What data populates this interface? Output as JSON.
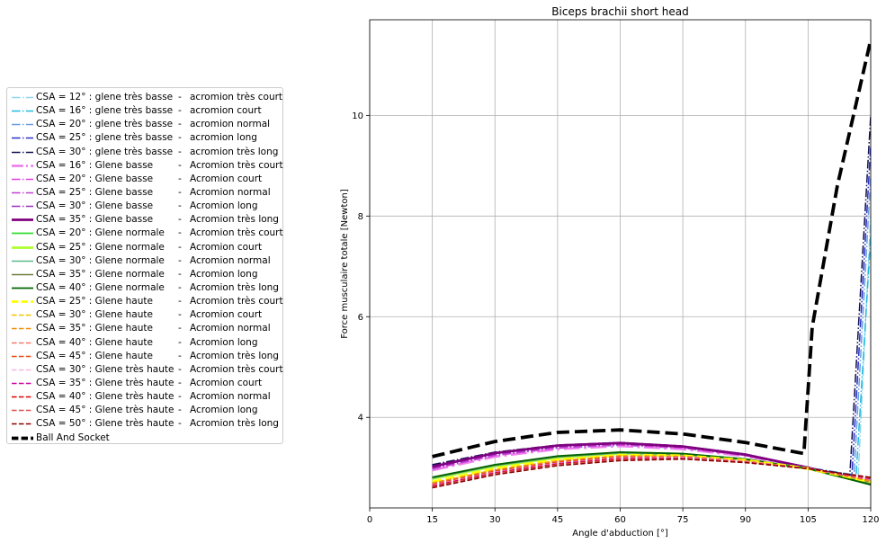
{
  "chart_data": {
    "type": "line",
    "title": "Biceps brachii short head",
    "xlabel": "Angle d'abduction [°]",
    "ylabel": "Force musculaire totale [Newton]",
    "xlim": [
      0,
      120
    ],
    "ylim": [
      2.2,
      11.9
    ],
    "xticks": [
      0,
      15,
      30,
      45,
      60,
      75,
      90,
      105,
      120
    ],
    "yticks": [
      4,
      6,
      8,
      10
    ],
    "grid": true,
    "legend_position": "left, outside plot",
    "series": [
      {
        "csa": "CSA = 12° : glene très basse",
        "acromion": "acromion très court",
        "color": "#8fd6e8",
        "dash": "dashdot",
        "width": 1.5,
        "x": [
          15,
          30,
          45,
          60,
          75,
          90,
          105,
          117,
          120
        ],
        "y": [
          3.0,
          3.25,
          3.38,
          3.44,
          3.38,
          3.25,
          3.0,
          2.85,
          8.0
        ]
      },
      {
        "csa": "CSA = 16° : glene très basse",
        "acromion": "acromion court",
        "color": "#22bbe0",
        "dash": "dashdot",
        "width": 1.5,
        "x": [
          15,
          30,
          45,
          60,
          75,
          90,
          105,
          116.5,
          120
        ],
        "y": [
          3.02,
          3.27,
          3.4,
          3.46,
          3.4,
          3.26,
          3.0,
          2.85,
          7.6
        ]
      },
      {
        "csa": "CSA = 20° : glene très basse",
        "acromion": "acromion normal",
        "color": "#6a9fe0",
        "dash": "dashdot",
        "width": 1.5,
        "x": [
          15,
          30,
          45,
          60,
          75,
          90,
          105,
          116,
          120
        ],
        "y": [
          3.03,
          3.28,
          3.41,
          3.47,
          3.41,
          3.26,
          3.0,
          2.85,
          8.8
        ]
      },
      {
        "csa": "CSA = 25° : glene très basse",
        "acromion": "acromion long",
        "color": "#2a30c8",
        "dash": "dashdot",
        "width": 1.5,
        "x": [
          15,
          30,
          45,
          60,
          75,
          90,
          105,
          115.5,
          120
        ],
        "y": [
          3.05,
          3.3,
          3.43,
          3.49,
          3.42,
          3.27,
          3.0,
          2.85,
          9.4
        ]
      },
      {
        "csa": "CSA = 30° : glene très basse",
        "acromion": "acromion très long",
        "color": "#101050",
        "dash": "dashdot",
        "width": 1.5,
        "x": [
          15,
          30,
          45,
          60,
          75,
          90,
          105,
          115,
          120
        ],
        "y": [
          3.06,
          3.31,
          3.45,
          3.5,
          3.43,
          3.27,
          3.0,
          2.85,
          10.0
        ]
      },
      {
        "csa": "CSA = 16° : Glene basse",
        "acromion": "Acromion très court",
        "color": "#ee82ee",
        "dash": "dashdot",
        "width": 2.8,
        "x": [
          15,
          30,
          45,
          60,
          75,
          90,
          105,
          120
        ],
        "y": [
          2.95,
          3.22,
          3.37,
          3.43,
          3.37,
          3.23,
          3.0,
          2.7
        ]
      },
      {
        "csa": "CSA = 20° : Glene basse",
        "acromion": "Acromion court",
        "color": "#e040e0",
        "dash": "dashdot",
        "width": 1.5,
        "x": [
          15,
          30,
          45,
          60,
          75,
          90,
          105,
          120
        ],
        "y": [
          2.97,
          3.24,
          3.39,
          3.45,
          3.39,
          3.24,
          3.0,
          2.7
        ]
      },
      {
        "csa": "CSA = 25° : Glene basse",
        "acromion": "Acromion normal",
        "color": "#c040d0",
        "dash": "dashdot",
        "width": 1.5,
        "x": [
          15,
          30,
          45,
          60,
          75,
          90,
          105,
          120
        ],
        "y": [
          2.98,
          3.25,
          3.4,
          3.46,
          3.4,
          3.25,
          3.0,
          2.7
        ]
      },
      {
        "csa": "CSA = 30° : Glene basse",
        "acromion": "Acromion long",
        "color": "#9b30c0",
        "dash": "dashdot",
        "width": 1.5,
        "x": [
          15,
          30,
          45,
          60,
          75,
          90,
          105,
          120
        ],
        "y": [
          3.0,
          3.27,
          3.42,
          3.48,
          3.41,
          3.26,
          3.0,
          2.7
        ]
      },
      {
        "csa": "CSA = 35° : Glene basse",
        "acromion": "Acromion très long",
        "color": "#800080",
        "dash": "solid",
        "width": 2.8,
        "x": [
          15,
          30,
          45,
          60,
          75,
          90,
          105,
          120
        ],
        "y": [
          3.02,
          3.29,
          3.44,
          3.49,
          3.42,
          3.26,
          3.0,
          2.7
        ]
      },
      {
        "csa": "CSA = 20° : Glene normale",
        "acromion": "Acromion très court",
        "color": "#33dd33",
        "dash": "solid",
        "width": 1.8,
        "x": [
          15,
          30,
          45,
          60,
          75,
          90,
          105,
          120
        ],
        "y": [
          2.8,
          3.05,
          3.22,
          3.3,
          3.27,
          3.17,
          2.98,
          2.68
        ]
      },
      {
        "csa": "CSA = 25° : Glene normale",
        "acromion": "Acromion court",
        "color": "#adff2f",
        "dash": "solid",
        "width": 2.8,
        "x": [
          15,
          30,
          45,
          60,
          75,
          90,
          105,
          120
        ],
        "y": [
          2.78,
          3.03,
          3.2,
          3.28,
          3.26,
          3.16,
          2.98,
          2.68
        ]
      },
      {
        "csa": "CSA = 30° : Glene normale",
        "acromion": "Acromion normal",
        "color": "#5cb88a",
        "dash": "solid",
        "width": 1.5,
        "x": [
          15,
          30,
          45,
          60,
          75,
          90,
          105,
          120
        ],
        "y": [
          2.79,
          3.04,
          3.21,
          3.29,
          3.26,
          3.16,
          2.98,
          2.68
        ]
      },
      {
        "csa": "CSA = 35° : Glene normale",
        "acromion": "Acromion long",
        "color": "#6b7e3a",
        "dash": "solid",
        "width": 1.5,
        "x": [
          15,
          30,
          45,
          60,
          75,
          90,
          105,
          120
        ],
        "y": [
          2.8,
          3.05,
          3.22,
          3.3,
          3.27,
          3.17,
          2.98,
          2.68
        ]
      },
      {
        "csa": "CSA = 40° : Glene normale",
        "acromion": "Acromion très long",
        "color": "#006400",
        "dash": "solid",
        "width": 1.8,
        "x": [
          15,
          30,
          45,
          60,
          75,
          90,
          105,
          120
        ],
        "y": [
          2.81,
          3.06,
          3.23,
          3.31,
          3.28,
          3.17,
          2.98,
          2.66
        ]
      },
      {
        "csa": "CSA = 25° : Glene haute",
        "acromion": "Acromion très court",
        "color": "#ffff00",
        "dash": "dashed",
        "width": 2.8,
        "x": [
          15,
          30,
          45,
          60,
          75,
          90,
          105,
          120
        ],
        "y": [
          2.72,
          2.98,
          3.16,
          3.25,
          3.24,
          3.15,
          2.98,
          2.72
        ]
      },
      {
        "csa": "CSA = 30° : Glene haute",
        "acromion": "Acromion court",
        "color": "#f0c400",
        "dash": "dashed",
        "width": 1.5,
        "x": [
          15,
          30,
          45,
          60,
          75,
          90,
          105,
          120
        ],
        "y": [
          2.7,
          2.96,
          3.14,
          3.24,
          3.23,
          3.14,
          2.98,
          2.73
        ]
      },
      {
        "csa": "CSA = 35° : Glene haute",
        "acromion": "Acromion normal",
        "color": "#f08c00",
        "dash": "dashed",
        "width": 1.5,
        "x": [
          15,
          30,
          45,
          60,
          75,
          90,
          105,
          120
        ],
        "y": [
          2.69,
          2.95,
          3.13,
          3.23,
          3.22,
          3.13,
          2.98,
          2.74
        ]
      },
      {
        "csa": "CSA = 40° : Glene haute",
        "acromion": "Acromion long",
        "color": "#f47a6a",
        "dash": "dashed",
        "width": 1.5,
        "x": [
          15,
          30,
          45,
          60,
          75,
          90,
          105,
          120
        ],
        "y": [
          2.68,
          2.94,
          3.12,
          3.22,
          3.22,
          3.13,
          2.98,
          2.75
        ]
      },
      {
        "csa": "CSA = 45° : Glene haute",
        "acromion": "Acromion très long",
        "color": "#e84a10",
        "dash": "dashed",
        "width": 1.5,
        "x": [
          15,
          30,
          45,
          60,
          75,
          90,
          105,
          120
        ],
        "y": [
          2.67,
          2.93,
          3.11,
          3.21,
          3.21,
          3.12,
          2.98,
          2.76
        ]
      },
      {
        "csa": "CSA = 30° : Glene très haute",
        "acromion": "Acromion très court",
        "color": "#f4b8e0",
        "dash": "dashed",
        "width": 1.5,
        "x": [
          15,
          30,
          45,
          60,
          75,
          90,
          105,
          120
        ],
        "y": [
          2.65,
          2.91,
          3.09,
          3.19,
          3.2,
          3.12,
          2.98,
          2.77
        ]
      },
      {
        "csa": "CSA = 35° : Glene très haute",
        "acromion": "Acromion court",
        "color": "#d000a0",
        "dash": "dashed",
        "width": 1.5,
        "x": [
          15,
          30,
          45,
          60,
          75,
          90,
          105,
          120
        ],
        "y": [
          2.64,
          2.9,
          3.08,
          3.18,
          3.19,
          3.11,
          2.98,
          2.78
        ]
      },
      {
        "csa": "CSA = 40° : Glene très haute",
        "acromion": "Acromion normal",
        "color": "#e00000",
        "dash": "dashed",
        "width": 1.5,
        "x": [
          15,
          30,
          45,
          60,
          75,
          90,
          105,
          120
        ],
        "y": [
          2.63,
          2.89,
          3.07,
          3.17,
          3.18,
          3.11,
          2.98,
          2.79
        ]
      },
      {
        "csa": "CSA = 45° : Glene très haute",
        "acromion": "Acromion long",
        "color": "#d85050",
        "dash": "dashed",
        "width": 1.5,
        "x": [
          15,
          30,
          45,
          60,
          75,
          90,
          105,
          120
        ],
        "y": [
          2.62,
          2.88,
          3.06,
          3.16,
          3.18,
          3.1,
          2.98,
          2.8
        ]
      },
      {
        "csa": "CSA = 50° : Glene très haute",
        "acromion": "Acromion très long",
        "color": "#8b0000",
        "dash": "dashed",
        "width": 1.5,
        "x": [
          15,
          30,
          45,
          60,
          75,
          90,
          105,
          120
        ],
        "y": [
          2.6,
          2.86,
          3.04,
          3.14,
          3.17,
          3.1,
          2.98,
          2.81
        ]
      },
      {
        "csa": "Ball And Socket",
        "acromion": "",
        "color": "#000000",
        "dash": "dashed",
        "width": 3.8,
        "x": [
          15,
          30,
          45,
          60,
          75,
          90,
          104,
          106,
          112,
          120
        ],
        "y": [
          3.22,
          3.52,
          3.7,
          3.75,
          3.67,
          3.5,
          3.28,
          5.8,
          8.6,
          11.5
        ]
      }
    ]
  }
}
